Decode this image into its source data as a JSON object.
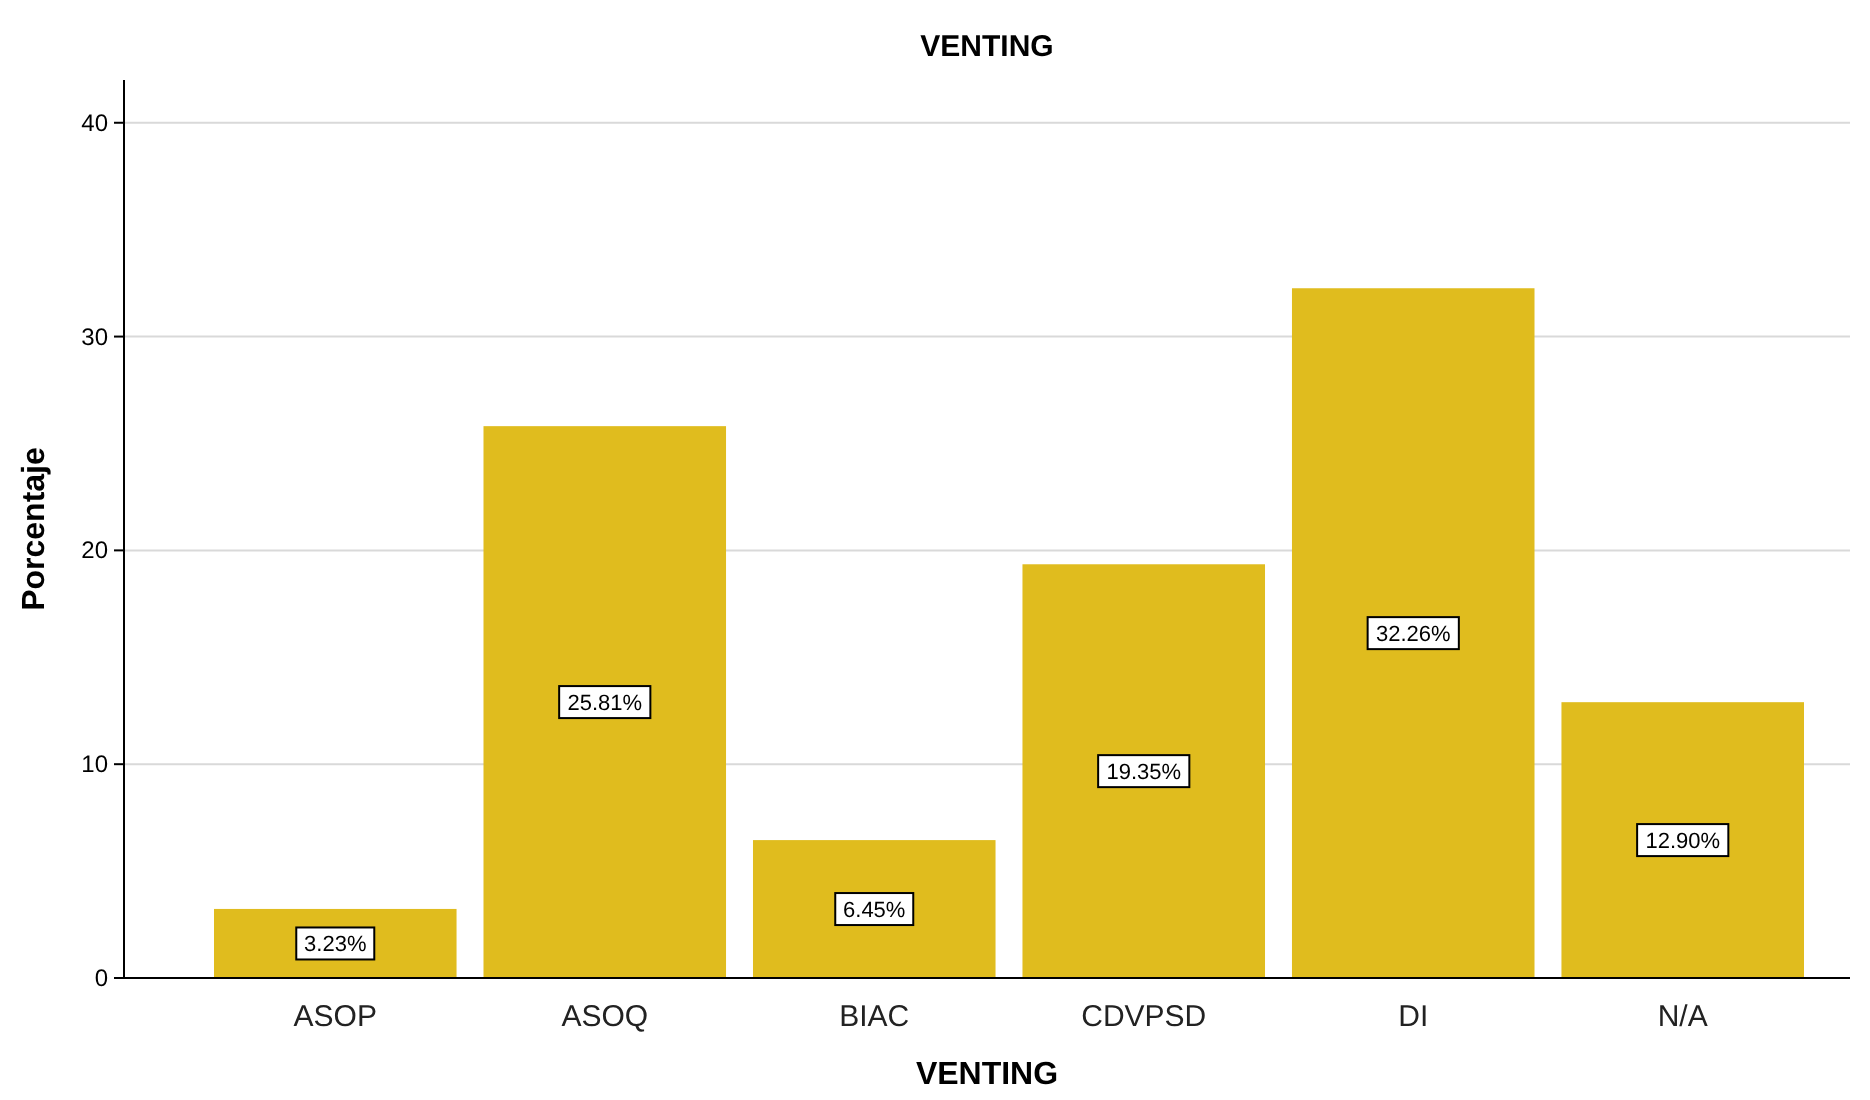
{
  "chart_data": {
    "type": "bar",
    "title": "VENTING",
    "xlabel": "VENTING",
    "ylabel": "Porcentaje",
    "categories": [
      "ASOP",
      "ASOQ",
      "BIAC",
      "CDVPSD",
      "DI",
      "N/A"
    ],
    "values": [
      3.23,
      25.81,
      6.45,
      19.35,
      32.26,
      12.9
    ],
    "value_labels": [
      "3.23%",
      "25.81%",
      "6.45%",
      "19.35%",
      "32.26%",
      "12.90%"
    ],
    "color": "#e0bc1e",
    "ylim": [
      0,
      42
    ],
    "yticks": [
      0,
      10,
      20,
      30,
      40
    ],
    "grid": "y"
  }
}
